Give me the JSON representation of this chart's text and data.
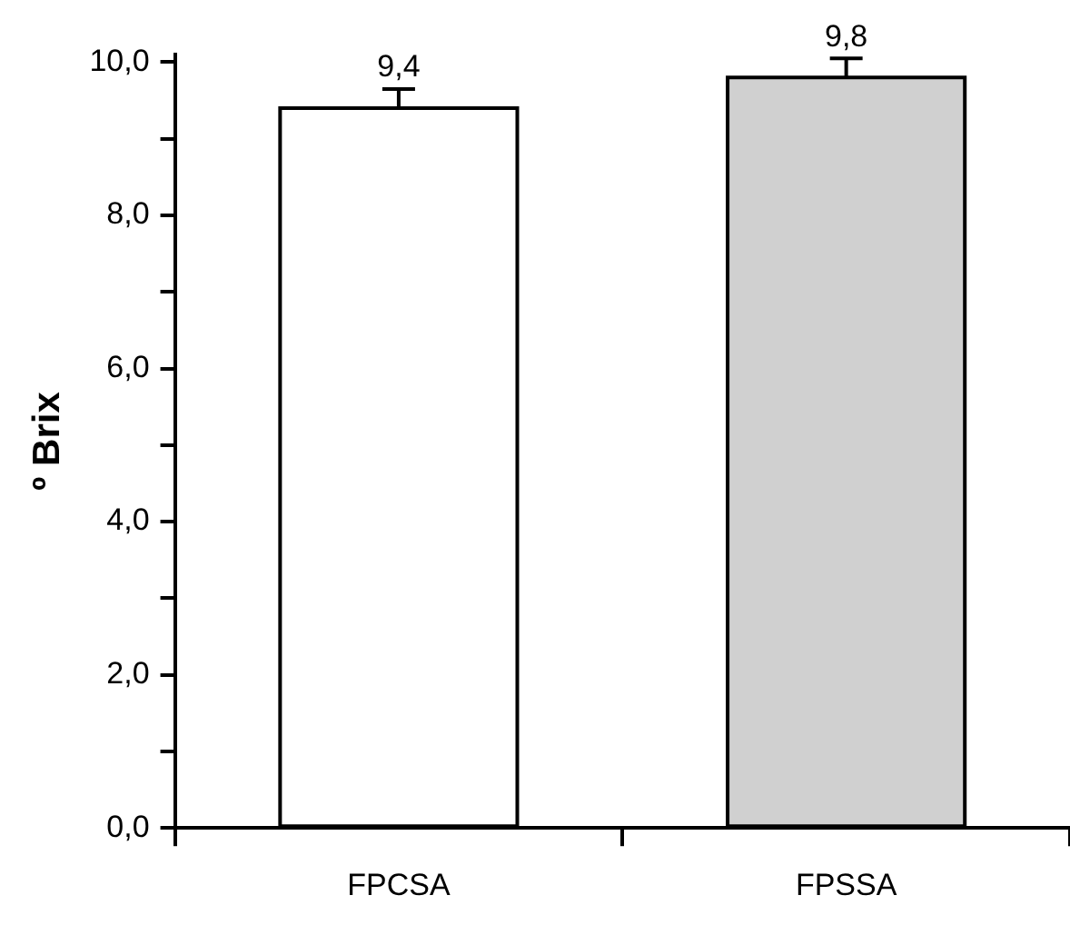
{
  "chart_data": {
    "type": "bar",
    "ylabel": "º Brix",
    "categories": [
      "FPCSA",
      "FPSSA"
    ],
    "values": [
      9.4,
      9.8
    ],
    "colors": [
      "#ffffff",
      "#d0d0d0"
    ],
    "errors": [
      [
        9.4,
        9.65
      ],
      [
        9.8,
        10.05
      ]
    ],
    "value_labels": [
      "9,4",
      "9,8"
    ],
    "ylim": [
      0,
      10.1
    ],
    "yticks": [
      {
        "value": 0,
        "label": "0,0"
      },
      {
        "value": 1,
        "label": null
      },
      {
        "value": 2,
        "label": "2,0"
      },
      {
        "value": 3,
        "label": null
      },
      {
        "value": 4,
        "label": "4,0"
      },
      {
        "value": 5,
        "label": null
      },
      {
        "value": 6,
        "label": "6,0"
      },
      {
        "value": 7,
        "label": null
      },
      {
        "value": 8,
        "label": "8,0"
      },
      {
        "value": 9,
        "label": null
      },
      {
        "value": 10,
        "label": "10,0"
      }
    ],
    "grid": false,
    "legend": false
  }
}
